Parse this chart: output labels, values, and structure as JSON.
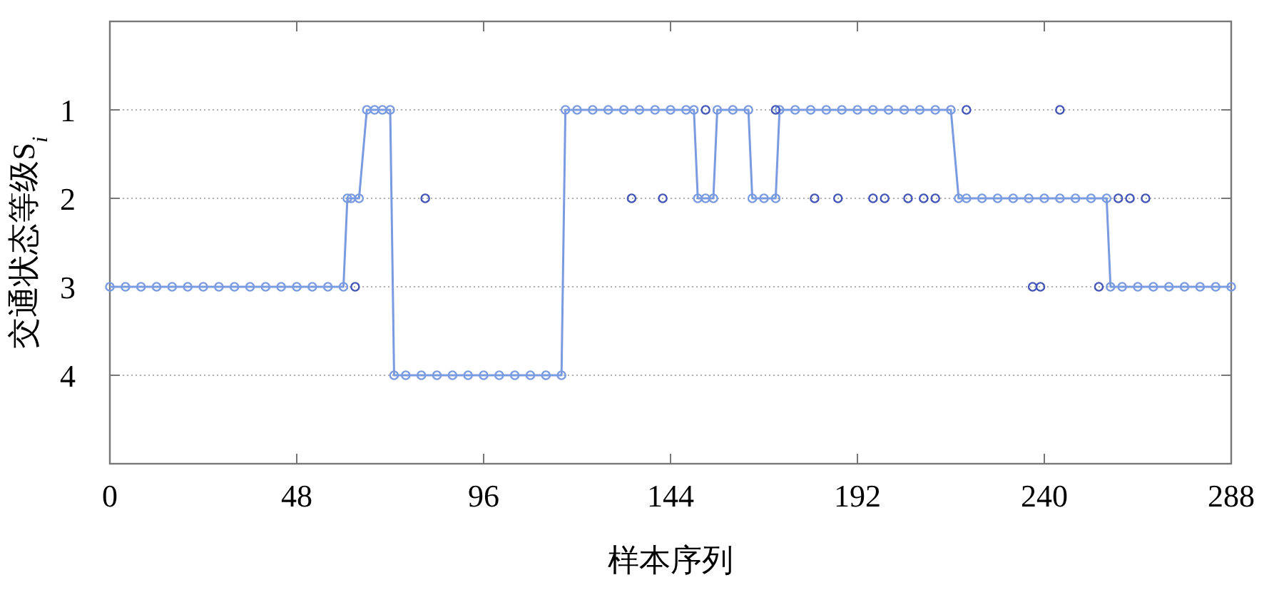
{
  "chart_data": {
    "type": "line",
    "xlabel": "样本序列",
    "ylabel": "交通状态等级S$_{i}$",
    "xlim": [
      0,
      288
    ],
    "xticks": [
      0,
      48,
      96,
      144,
      192,
      240,
      288
    ],
    "ylim": [
      5,
      0
    ],
    "yticks": [
      1,
      2,
      3,
      4
    ],
    "grid": "y",
    "marker": "circle",
    "legend": false,
    "series": [
      {
        "color": "#7b9be0",
        "x": [
          0,
          4,
          8,
          12,
          16,
          20,
          24,
          28,
          32,
          36,
          40,
          44,
          48,
          52,
          56,
          60,
          61,
          62,
          64,
          66,
          68,
          70,
          72,
          73,
          76,
          80,
          84,
          88,
          92,
          96,
          100,
          104,
          108,
          112,
          116,
          117,
          120,
          124,
          128,
          132,
          136,
          140,
          144,
          148,
          150,
          151,
          153,
          155,
          156,
          160,
          164,
          165,
          168,
          171,
          172,
          176,
          180,
          184,
          188,
          192,
          196,
          200,
          204,
          208,
          212,
          216,
          218,
          220,
          224,
          228,
          232,
          236,
          240,
          244,
          248,
          252,
          256,
          257,
          260,
          264,
          268,
          272,
          276,
          280,
          284,
          288
        ],
        "values": [
          3,
          3,
          3,
          3,
          3,
          3,
          3,
          3,
          3,
          3,
          3,
          3,
          3,
          3,
          3,
          3,
          2,
          2,
          2,
          1,
          1,
          1,
          1,
          4,
          4,
          4,
          4,
          4,
          4,
          4,
          4,
          4,
          4,
          4,
          4,
          1,
          1,
          1,
          1,
          1,
          1,
          1,
          1,
          1,
          1,
          2,
          2,
          2,
          1,
          1,
          1,
          2,
          2,
          2,
          1,
          1,
          1,
          1,
          1,
          1,
          1,
          1,
          1,
          1,
          1,
          1,
          2,
          2,
          2,
          2,
          2,
          2,
          2,
          2,
          2,
          2,
          2,
          3,
          3,
          3,
          3,
          3,
          3,
          3,
          3,
          3
        ]
      },
      {
        "type": "scatter",
        "color": "#4456b8",
        "x": [
          63,
          81,
          134,
          142,
          153,
          171,
          181,
          187,
          196,
          199,
          205,
          209,
          212,
          220,
          244,
          237,
          239,
          254,
          259,
          262,
          266
        ],
        "values": [
          3,
          2,
          2,
          2,
          1,
          1,
          2,
          2,
          2,
          2,
          2,
          2,
          2,
          1,
          1,
          3,
          3,
          3,
          2,
          2,
          2
        ]
      }
    ]
  }
}
